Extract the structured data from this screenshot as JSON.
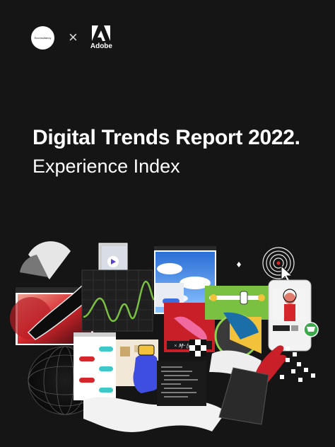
{
  "cover": {
    "partner_logo_text": "Econsultancy",
    "separator": "×",
    "brand_name": "Adobe",
    "title": "Digital Trends Report 2022.",
    "subtitle": "Experience Index"
  },
  "colors": {
    "background": "#151515",
    "text": "#ffffff",
    "accent_red": "#d4262b",
    "accent_green": "#7ac142",
    "accent_blue": "#3d6ee0",
    "accent_teal": "#3ec8c8",
    "accent_yellow": "#f2c23a"
  },
  "collage_icons": [
    "play-icon",
    "smiley-icon",
    "cart-icon",
    "cursor-icon",
    "fingerprint-icon",
    "chat-bubbles-icon",
    "wave-graph-icon",
    "hand-icon"
  ]
}
